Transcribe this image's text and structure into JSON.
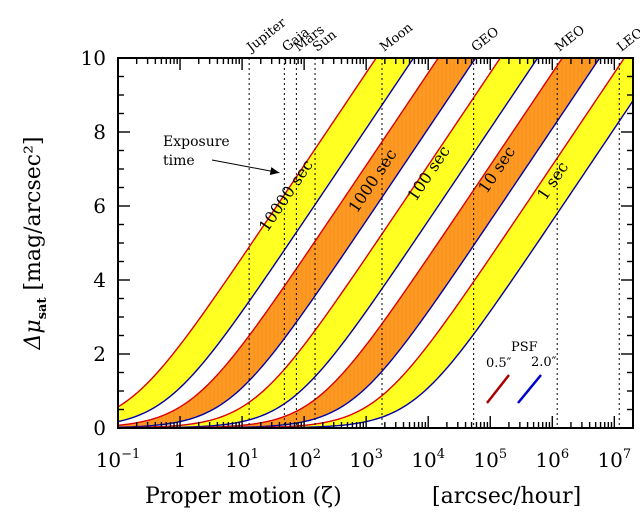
{
  "chart_data": {
    "type": "area",
    "xscale": "log",
    "xlim": [
      0.1,
      20000000
    ],
    "ylim": [
      0,
      10
    ],
    "xlabel": "Proper motion (ζ)",
    "xunit": "[arcsec/hour]",
    "ylabel_symbol": "Δμ",
    "ylabel_sub": "sat",
    "ylabel_unit": "[mag/arcsec²]",
    "yticks": [
      {
        "value": 0,
        "label": "0"
      },
      {
        "value": 2,
        "label": "2"
      },
      {
        "value": 4,
        "label": "4"
      },
      {
        "value": 6,
        "label": "6"
      },
      {
        "value": 8,
        "label": "8"
      },
      {
        "value": 10,
        "label": "10"
      }
    ],
    "xticks": [
      {
        "value": 0.1,
        "base": "10",
        "exp": "−1"
      },
      {
        "value": 1,
        "base": "1",
        "exp": ""
      },
      {
        "value": 10,
        "base": "10",
        "exp": "1"
      },
      {
        "value": 100,
        "base": "10",
        "exp": "2"
      },
      {
        "value": 1000,
        "base": "10",
        "exp": "3"
      },
      {
        "value": 10000,
        "base": "10",
        "exp": "4"
      },
      {
        "value": 100000,
        "base": "10",
        "exp": "5"
      },
      {
        "value": 1000000,
        "base": "10",
        "exp": "6"
      },
      {
        "value": 10000000,
        "base": "10",
        "exp": "7"
      }
    ],
    "objects": [
      {
        "name": "Jupiter",
        "x": 13
      },
      {
        "name": "Gaia",
        "x": 48
      },
      {
        "name": "Mars",
        "x": 75
      },
      {
        "name": "Sun",
        "x": 150
      },
      {
        "name": "Moon",
        "x": 1800
      },
      {
        "name": "GEO",
        "x": 54000
      },
      {
        "name": "MEO",
        "x": 1200000
      },
      {
        "name": "LEO",
        "x": 12000000
      }
    ],
    "bands": [
      {
        "name": "10000 sec",
        "color": "#ffff22",
        "psf_05_c": 0.145,
        "psf_20_c": 0.58,
        "label_x": 60,
        "label_y": 6.2
      },
      {
        "name": "1000 sec",
        "color": "#ff9922",
        "psf_05_c": 1.45,
        "psf_20_c": 5.8,
        "label_x": 1500,
        "label_y": 6.6
      },
      {
        "name": "100 sec",
        "color": "#ffff22",
        "psf_05_c": 14.5,
        "psf_20_c": 58,
        "label_x": 12000,
        "label_y": 6.8
      },
      {
        "name": "10 sec",
        "color": "#ff9922",
        "psf_05_c": 145,
        "psf_20_c": 580,
        "label_x": 150000,
        "label_y": 6.9
      },
      {
        "name": "1 sec",
        "color": "#ffff22",
        "psf_05_c": 1450,
        "psf_20_c": 5800,
        "label_x": 1200000,
        "label_y": 6.6
      }
    ],
    "annotation": {
      "line1": "Exposure",
      "line2": "time",
      "arrow_to_x": 40,
      "arrow_to_y": 6.9
    },
    "legend": {
      "title": "PSF",
      "items": [
        {
          "label": "0.5″",
          "color": "#aa0000"
        },
        {
          "label": "2.0″",
          "color": "#0000cc"
        }
      ]
    },
    "line_colors": {
      "psf_05": "#dd0000",
      "psf_20": "#0000aa"
    }
  }
}
